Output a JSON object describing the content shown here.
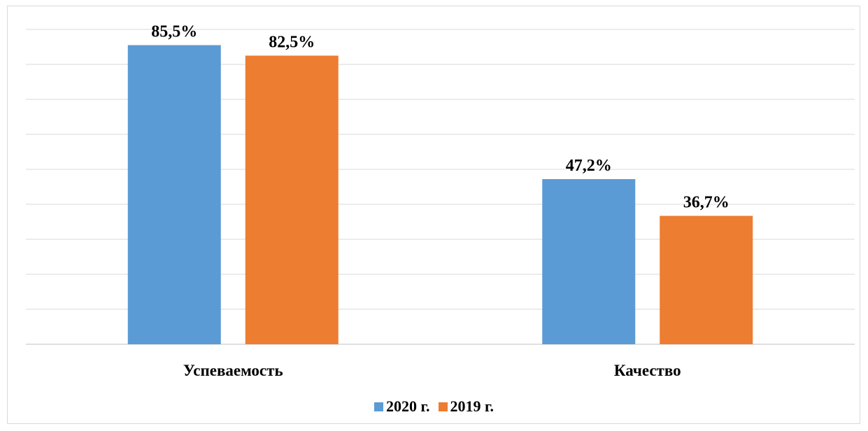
{
  "chart_data": {
    "type": "bar",
    "categories": [
      "Успеваемость",
      "Качество"
    ],
    "series": [
      {
        "name": "2020 г.",
        "color": "#5B9BD5",
        "values": [
          85.5,
          47.2
        ],
        "labels": [
          "85,5%",
          "47,2%"
        ]
      },
      {
        "name": "2019 г.",
        "color": "#ED7D31",
        "values": [
          82.5,
          36.7
        ],
        "labels": [
          "82,5%",
          "36,7%"
        ]
      }
    ],
    "ylim": [
      0,
      90
    ],
    "grid": true,
    "legend_position": "bottom",
    "title": "",
    "xlabel": "",
    "ylabel": ""
  }
}
